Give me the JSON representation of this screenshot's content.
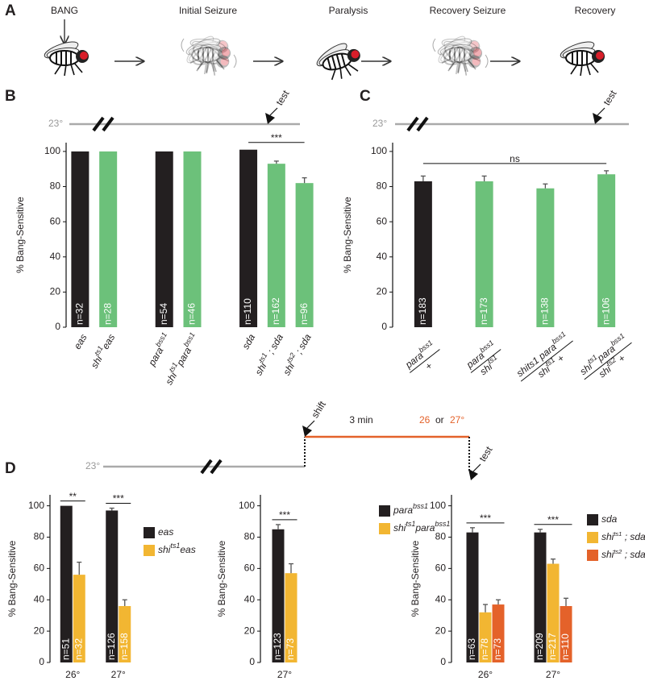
{
  "panel_labels": [
    "A",
    "B",
    "C",
    "D"
  ],
  "panel_a": {
    "bang": "BANG",
    "steps": [
      "Initial Seizure",
      "Paralysis",
      "Recovery Seizure",
      "Recovery"
    ]
  },
  "timeline_b": {
    "start": "23°",
    "test": "test"
  },
  "timeline_c": {
    "start": "23°",
    "test": "test"
  },
  "timeline_d": {
    "start": "23°",
    "shift": "shift",
    "duration": "3 min",
    "temp_a": "26",
    "or": "or",
    "temp_b": "27°",
    "test": "test"
  },
  "chart_data": [
    {
      "type": "bar",
      "ylabel": "% Bang-Sensitive",
      "categories": [
        [
          "eas"
        ],
        [
          "shi",
          "ts1",
          "eas"
        ],
        null,
        [
          "para",
          "bss1"
        ],
        [
          "shi",
          "ts1",
          "para",
          "bss1"
        ],
        null,
        [
          "sda"
        ],
        [
          "shi",
          "ts1",
          " ; sda"
        ],
        [
          "shi",
          "ts2",
          " ; sda"
        ]
      ],
      "values": [
        100,
        100,
        null,
        100,
        100,
        null,
        101,
        93,
        82
      ],
      "errors": [
        null,
        null,
        null,
        null,
        null,
        null,
        null,
        1.5,
        3
      ],
      "colors": [
        "#231f20",
        "#6cc17a",
        null,
        "#231f20",
        "#6cc17a",
        null,
        "#231f20",
        "#6cc17a",
        "#6cc17a"
      ],
      "n_labels": [
        "n=32",
        "n=28",
        null,
        "n=54",
        "n=46",
        null,
        "n=110",
        "n=162",
        "n=96"
      ],
      "ylim": [
        0,
        105
      ],
      "yticks": [
        0,
        20,
        40,
        60,
        80,
        100
      ],
      "significance": [
        {
          "label": "***",
          "span": [
            6,
            8
          ]
        }
      ]
    },
    {
      "type": "bar",
      "ylabel": "% Bang-Sensitive",
      "categories": [
        {
          "over": [
            "para",
            "bss1"
          ],
          "under": [
            "+"
          ]
        },
        {
          "over": [
            "para",
            "bss1"
          ],
          "under": [
            "shi",
            "ts1"
          ]
        },
        {
          "over": [
            "shits1 para",
            "bss1"
          ],
          "under": [
            "shi",
            "ts1",
            " +"
          ]
        },
        {
          "over": [
            "shi",
            "ts1",
            "para",
            "bss1"
          ],
          "under": [
            "shi",
            "ts2",
            " +"
          ]
        }
      ],
      "values": [
        83,
        83,
        79,
        87
      ],
      "errors": [
        3,
        3,
        2.5,
        2
      ],
      "colors": [
        "#231f20",
        "#6cc17a",
        "#6cc17a",
        "#6cc17a"
      ],
      "n_labels": [
        "n=183",
        "n=173",
        "n=138",
        "n=106"
      ],
      "ylim": [
        0,
        105
      ],
      "yticks": [
        0,
        20,
        40,
        60,
        80,
        100
      ],
      "significance": [
        {
          "label": "ns",
          "span": [
            0,
            3
          ]
        }
      ]
    },
    {
      "type": "grouped_bar",
      "ylabel": "% Bang-Sensitive",
      "legend": "upper right",
      "categories": [
        "26°",
        "27°"
      ],
      "series": [
        {
          "name": [
            "eas"
          ],
          "color": "#231f20",
          "values": [
            100,
            97
          ],
          "errors": [
            null,
            1.5
          ],
          "n_labels": [
            "n=51",
            "n=126"
          ]
        },
        {
          "name": [
            "shi",
            "ts1",
            "eas"
          ],
          "color": "#f2b632",
          "values": [
            56,
            36
          ],
          "errors": [
            8,
            4
          ],
          "n_labels": [
            "n=32",
            "n=158"
          ]
        }
      ],
      "ylim": [
        0,
        107
      ],
      "yticks": [
        0,
        20,
        40,
        60,
        80,
        100
      ],
      "significance": [
        {
          "label": "**",
          "category": 0
        },
        {
          "label": "***",
          "category": 1
        }
      ]
    },
    {
      "type": "grouped_bar",
      "ylabel": "% Bang-Sensitive",
      "legend": "upper right",
      "categories": [
        "27°"
      ],
      "series": [
        {
          "name": [
            "para",
            "bss1"
          ],
          "color": "#231f20",
          "values": [
            85
          ],
          "errors": [
            3
          ],
          "n_labels": [
            "n=123"
          ]
        },
        {
          "name": [
            "shi",
            "ts1",
            "para",
            "bss1"
          ],
          "color": "#f2b632",
          "values": [
            57
          ],
          "errors": [
            6
          ],
          "n_labels": [
            "n=73"
          ]
        }
      ],
      "ylim": [
        0,
        107
      ],
      "yticks": [
        0,
        20,
        40,
        60,
        80,
        100
      ],
      "significance": [
        {
          "label": "***",
          "category": 0
        }
      ]
    },
    {
      "type": "grouped_bar",
      "ylabel": "% Bang-Sensitive",
      "legend": "upper right",
      "categories": [
        "26°",
        "27°"
      ],
      "series": [
        {
          "name": [
            "sda"
          ],
          "color": "#231f20",
          "values": [
            83,
            83
          ],
          "errors": [
            3,
            2
          ],
          "n_labels": [
            "n=63",
            "n=209"
          ]
        },
        {
          "name": [
            "shi",
            "ts1",
            " ; sda"
          ],
          "color": "#f2b632",
          "values": [
            32,
            63
          ],
          "errors": [
            5,
            3
          ],
          "n_labels": [
            "n=78",
            "n=217"
          ]
        },
        {
          "name": [
            "shi",
            "ts2",
            " ; sda"
          ],
          "color": "#e4622a",
          "values": [
            37,
            36
          ],
          "errors": [
            3,
            5
          ],
          "n_labels": [
            "n=73",
            "n=110"
          ]
        }
      ],
      "ylim": [
        0,
        107
      ],
      "yticks": [
        0,
        20,
        40,
        60,
        80,
        100
      ],
      "significance": [
        {
          "label": "***",
          "category": 0
        },
        {
          "label": "***",
          "category": 1
        }
      ]
    }
  ]
}
